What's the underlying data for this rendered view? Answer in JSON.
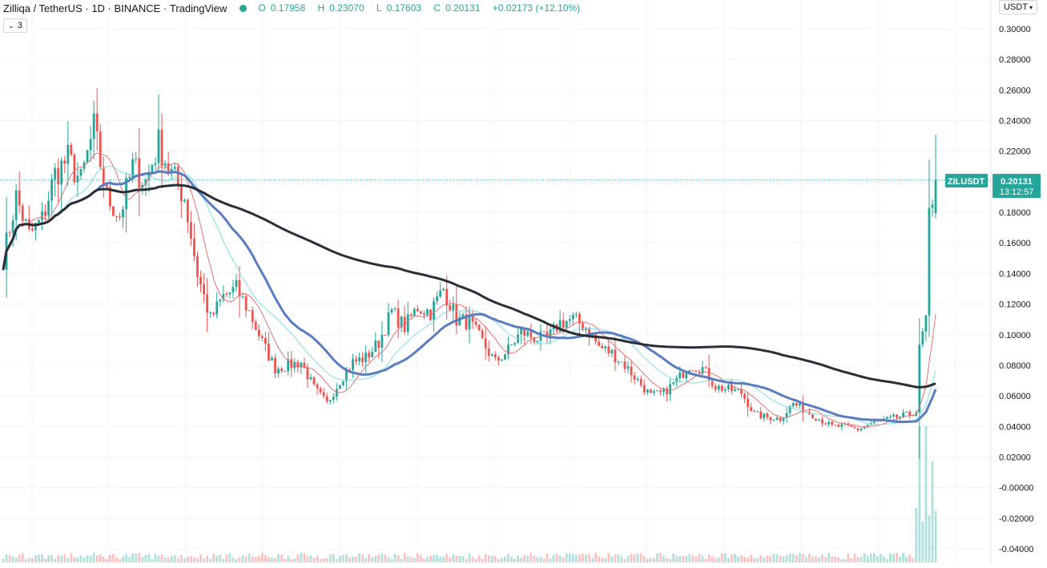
{
  "header": {
    "symbol_title": "Zilliqa / TetherUS",
    "interval": "1D",
    "exchange": "BINANCE",
    "source": "TradingView",
    "open_label": "O",
    "open": "0.17958",
    "high_label": "H",
    "high": "0.23070",
    "low_label": "L",
    "low": "0.17603",
    "close_label": "C",
    "close": "0.20131",
    "change": "+0.02173 (+12.10%)",
    "indicators_count": "3",
    "currency_button": "USDT"
  },
  "price_tag": {
    "symbol": "ZILUSDT",
    "price": "0.20131",
    "countdown": "13:12:57"
  },
  "colors": {
    "up": "#26a69a",
    "down": "#ef5350",
    "ma_fast": "#e57373",
    "ma_mid": "#80deea",
    "ma_slow": "#5b7dbf",
    "ma_long": "#2a2e39",
    "grid": "#f0f3fa",
    "axis_text": "#131722"
  },
  "chart_data": {
    "type": "candlestick",
    "y_axis": {
      "ticks": [
        "0.30000",
        "0.28000",
        "0.26000",
        "0.24000",
        "0.22000",
        "0.20000",
        "0.18000",
        "0.16000",
        "0.14000",
        "0.12000",
        "0.10000",
        "0.08000",
        "0.06000",
        "0.04000",
        "0.02000",
        "-0.00000",
        "-0.02000",
        "-0.04000"
      ],
      "ylim": [
        -0.046,
        0.31
      ]
    },
    "last_price": 0.20131,
    "price_keypoints": [
      [
        0,
        0.15
      ],
      [
        4,
        0.19
      ],
      [
        8,
        0.165
      ],
      [
        12,
        0.175
      ],
      [
        16,
        0.205
      ],
      [
        20,
        0.215
      ],
      [
        24,
        0.2
      ],
      [
        28,
        0.235
      ],
      [
        32,
        0.19
      ],
      [
        36,
        0.178
      ],
      [
        40,
        0.21
      ],
      [
        44,
        0.2
      ],
      [
        48,
        0.225
      ],
      [
        52,
        0.205
      ],
      [
        56,
        0.19
      ],
      [
        60,
        0.14
      ],
      [
        64,
        0.11
      ],
      [
        68,
        0.125
      ],
      [
        72,
        0.13
      ],
      [
        76,
        0.115
      ],
      [
        80,
        0.095
      ],
      [
        84,
        0.078
      ],
      [
        88,
        0.08
      ],
      [
        92,
        0.082
      ],
      [
        96,
        0.065
      ],
      [
        100,
        0.055
      ],
      [
        104,
        0.07
      ],
      [
        108,
        0.082
      ],
      [
        112,
        0.085
      ],
      [
        116,
        0.095
      ],
      [
        120,
        0.115
      ],
      [
        124,
        0.105
      ],
      [
        128,
        0.118
      ],
      [
        132,
        0.115
      ],
      [
        136,
        0.13
      ],
      [
        140,
        0.11
      ],
      [
        144,
        0.108
      ],
      [
        148,
        0.095
      ],
      [
        152,
        0.082
      ],
      [
        156,
        0.09
      ],
      [
        160,
        0.102
      ],
      [
        164,
        0.098
      ],
      [
        168,
        0.097
      ],
      [
        172,
        0.108
      ],
      [
        176,
        0.11
      ],
      [
        180,
        0.105
      ],
      [
        184,
        0.092
      ],
      [
        188,
        0.088
      ],
      [
        192,
        0.08
      ],
      [
        196,
        0.07
      ],
      [
        200,
        0.06
      ],
      [
        204,
        0.062
      ],
      [
        208,
        0.07
      ],
      [
        212,
        0.08
      ],
      [
        216,
        0.078
      ],
      [
        220,
        0.066
      ],
      [
        224,
        0.064
      ],
      [
        228,
        0.062
      ],
      [
        232,
        0.048
      ],
      [
        236,
        0.046
      ],
      [
        240,
        0.045
      ],
      [
        244,
        0.055
      ],
      [
        248,
        0.05
      ],
      [
        252,
        0.045
      ],
      [
        256,
        0.04
      ],
      [
        260,
        0.04
      ],
      [
        264,
        0.038
      ],
      [
        268,
        0.042
      ],
      [
        272,
        0.044
      ],
      [
        276,
        0.046
      ],
      [
        280,
        0.048
      ],
      [
        282,
        0.05
      ],
      [
        283,
        0.09
      ],
      [
        284,
        0.1
      ],
      [
        285,
        0.11
      ],
      [
        286,
        0.175
      ],
      [
        287,
        0.18
      ],
      [
        288,
        0.201
      ]
    ],
    "moving_averages": [
      {
        "key": "ma_fast",
        "period": 9
      },
      {
        "key": "ma_mid",
        "period": 20
      },
      {
        "key": "ma_slow",
        "period": 30
      },
      {
        "key": "ma_long",
        "period": 120
      }
    ],
    "candles_count": 289,
    "grid": true
  }
}
